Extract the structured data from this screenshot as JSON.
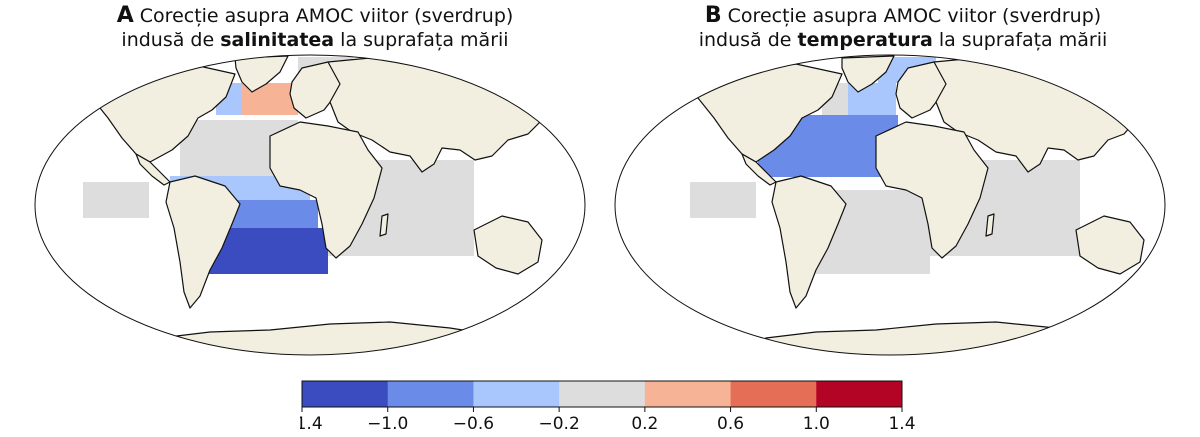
{
  "panel_a": {
    "letter": "A",
    "line1": "Corecție asupra AMOC viitor (sverdrup)",
    "line2_pre": "indusă de",
    "line2_bold": "salinitatea",
    "line2_post": "la suprafața mării"
  },
  "panel_b": {
    "letter": "B",
    "line1": "Corecție asupra AMOC viitor (sverdrup)",
    "line2_pre": "indusă de",
    "line2_bold": "temperatura",
    "line2_post": "la suprafața mării"
  },
  "colorbar": {
    "ticks": [
      "−1.4",
      "−1.0",
      "−0.6",
      "−0.2",
      "0.2",
      "0.6",
      "1.0",
      "1.4"
    ],
    "bins": [
      "#3b4cc0",
      "#6a8be8",
      "#aac7fd",
      "#dddddd",
      "#f6b396",
      "#e46e56",
      "#b40426"
    ]
  },
  "colors": {
    "land": "#f2efe0",
    "coast": "#111111",
    "neutral": "#dddddd"
  }
}
